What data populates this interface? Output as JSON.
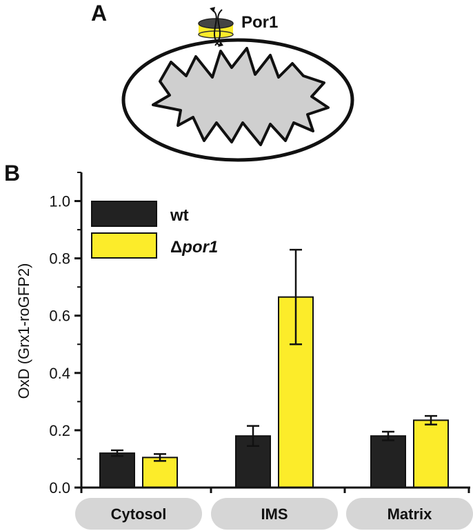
{
  "panel_a": {
    "letter": "A",
    "channel_label": "Por1"
  },
  "panel_b": {
    "letter": "B"
  },
  "colors": {
    "wt": "#222222",
    "por1": "#fcec2a",
    "matrix_fill": "#cfcfcf",
    "category_pill": "#d6d6d6"
  },
  "chart_data": {
    "type": "bar",
    "categories": [
      "Cytosol",
      "IMS",
      "Matrix"
    ],
    "ylabel": "OxD (Grx1-roGFP2)",
    "ylim": [
      0,
      1.1
    ],
    "yticks": [
      "0.0",
      "0.2",
      "0.4",
      "0.6",
      "0.8",
      "1.0"
    ],
    "legend": {
      "placement": "top-left",
      "wt_label": "wt",
      "por1_prefix": "Δ",
      "por1_italic": "por1"
    },
    "series": [
      {
        "name": "wt",
        "values": [
          0.12,
          0.18,
          0.18
        ],
        "errors": [
          0.01,
          0.035,
          0.015
        ]
      },
      {
        "name": "Δpor1",
        "values": [
          0.105,
          0.665,
          0.235
        ],
        "errors": [
          0.012,
          0.165,
          0.015
        ]
      }
    ]
  }
}
